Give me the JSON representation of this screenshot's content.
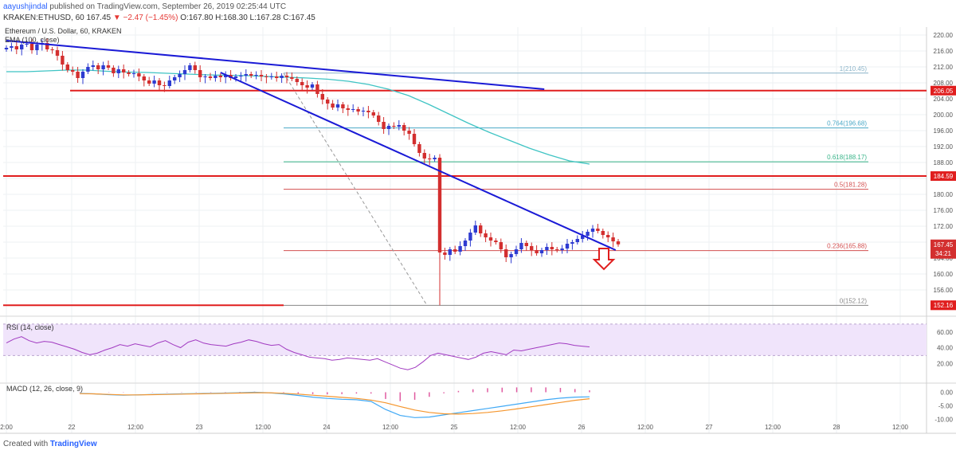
{
  "header": {
    "username": "aayushjindal",
    "published": "published on TradingView.com, September 26, 2019 02:25:44 UTC",
    "symbol": "KRAKEN:ETHUSD, 60",
    "last": "167.45",
    "change": "▼ −2.47 (−1.45%)",
    "ohlc": "O:167.80 H:168.30 L:167.28 C:167.45"
  },
  "colors": {
    "up": "#2e3bd1",
    "down": "#d32f2f",
    "ema": "#3fc4c4",
    "trend": "#1a1ad6",
    "level": "#e01e1e",
    "rsi": "#a13ac1",
    "rsi_band": "#f0e4fb",
    "macd": "#40a9f5",
    "signal": "#f5962e",
    "hist": "#e05aa0"
  },
  "chart_data": [
    {
      "type": "candlestick",
      "title": "Ethereum / U.S. Dollar, 60, KRAKEN",
      "indicator": "EMA (100, close)",
      "ylim": [
        152,
        222
      ],
      "y_ticks": [
        "220.00",
        "216.00",
        "212.00",
        "208.00",
        "204.00",
        "200.00",
        "196.00",
        "192.00",
        "188.00",
        "184.00",
        "180.00",
        "176.00",
        "172.00",
        "168.00",
        "164.00",
        "160.00",
        "156.00"
      ],
      "x_labels": [
        "2:00",
        "22",
        "12:00",
        "23",
        "12:00",
        "24",
        "12:00",
        "25",
        "12:00",
        "26",
        "12:00",
        "27",
        "12:00",
        "28",
        "12:00"
      ],
      "closes": [
        216.8,
        217.2,
        216.4,
        217.6,
        217.8,
        216.2,
        217.6,
        218.0,
        216.4,
        216.2,
        214.8,
        212.6,
        211.2,
        210.8,
        209.2,
        210.8,
        212.0,
        212.4,
        211.4,
        212.4,
        211.8,
        210.4,
        211.4,
        210.6,
        210.2,
        210.4,
        209.6,
        208.6,
        207.8,
        208.6,
        207.4,
        207.2,
        208.6,
        209.4,
        210.2,
        211.2,
        212.4,
        211.2,
        209.4,
        209.6,
        209.2,
        209.8,
        209.4,
        210.0,
        209.2,
        209.6,
        209.8,
        210.2,
        209.8,
        210.0,
        209.6,
        209.4,
        209.6,
        209.2,
        209.8,
        209.4,
        209.0,
        208.2,
        207.4,
        206.8,
        207.6,
        205.2,
        203.8,
        202.8,
        201.8,
        202.6,
        201.6,
        201.2,
        201.4,
        200.8,
        201.0,
        200.6,
        199.8,
        198.2,
        196.4,
        197.2,
        197.0,
        197.4,
        196.0,
        195.2,
        192.6,
        190.4,
        189.0,
        188.8,
        189.2,
        165.4,
        164.8,
        166.2,
        165.6,
        167.0,
        168.4,
        170.4,
        172.2,
        170.2,
        169.2,
        168.4,
        168.0,
        166.2,
        164.2,
        165.0,
        166.2,
        167.8,
        167.0,
        166.0,
        165.2,
        166.0,
        166.8,
        166.2,
        166.0,
        166.4,
        167.6,
        168.0,
        168.8,
        169.6,
        170.6,
        171.4,
        170.8,
        169.8,
        169.2,
        168.2,
        167.45
      ],
      "last_price": "167.45",
      "last_price_countdown": "34:21",
      "ema_values": [
        210.8,
        210.8,
        211.0,
        211.2,
        211.2,
        210.9,
        210.7,
        210.6,
        210.4,
        210.2,
        210.0,
        209.9,
        209.8,
        209.6,
        209.4,
        209.2,
        208.9,
        208.4,
        207.6,
        206.4,
        204.8,
        202.6,
        200.2,
        197.8,
        195.6,
        193.6,
        191.6,
        189.9,
        188.4,
        187.6
      ],
      "levels": [
        {
          "label": "206.05",
          "value": 206.05,
          "style": "resistance"
        },
        {
          "label": "184.59",
          "value": 184.59,
          "style": "resistance"
        },
        {
          "label": "152.16",
          "value": 152.16,
          "style": "support"
        }
      ],
      "fib_levels": [
        {
          "label": "1(210.45)",
          "value": 210.45
        },
        {
          "label": "0.764(196.68)",
          "value": 196.68
        },
        {
          "label": "0.618(188.17)",
          "value": 188.17
        },
        {
          "label": "0.5(181.28)",
          "value": 181.28
        },
        {
          "label": "0.236(165.88)",
          "value": 165.88
        },
        {
          "label": "0(152.12)",
          "value": 152.12
        }
      ],
      "trend_lines": [
        {
          "from": [
            0,
            218.6
          ],
          "to": [
            105.5,
            206.4
          ]
        },
        {
          "from": [
            42,
            210.6
          ],
          "to": [
            119.5,
            166.0
          ]
        }
      ]
    },
    {
      "type": "line",
      "title": "RSI (14, close)",
      "ylim": [
        0,
        75
      ],
      "y_ticks": [
        "60.00",
        "40.00",
        "20.00"
      ],
      "bands": [
        30,
        70
      ],
      "values": [
        46,
        51,
        54,
        49,
        46,
        48,
        47,
        44,
        41,
        38,
        34,
        31,
        33,
        37,
        40,
        44,
        42,
        45,
        43,
        41,
        46,
        49,
        44,
        40,
        47,
        50,
        46,
        44,
        43,
        42,
        45,
        47,
        50,
        48,
        45,
        43,
        44,
        38,
        34,
        31,
        28,
        27,
        26,
        24,
        25,
        27,
        26,
        25,
        24,
        26,
        22,
        18,
        14,
        12,
        15,
        22,
        30,
        33,
        31,
        29,
        27,
        25,
        28,
        33,
        35,
        33,
        31,
        37,
        36,
        38,
        40,
        42,
        44,
        46,
        45,
        43,
        42,
        41
      ]
    },
    {
      "type": "line",
      "title": "MACD (12, 26, close, 9)",
      "ylim": [
        -10.5,
        2.5
      ],
      "y_ticks": [
        "0.00",
        "-5.00",
        "-10.00"
      ],
      "series": [
        {
          "name": "MACD",
          "values": [
            -0.4,
            -0.6,
            -0.9,
            -1.1,
            -1.0,
            -0.8,
            -0.7,
            -0.6,
            -0.5,
            -0.4,
            -0.3,
            -0.2,
            0.0,
            -0.2,
            -0.6,
            -1.2,
            -1.8,
            -2.3,
            -2.6,
            -2.8,
            -3.4,
            -6.4,
            -8.6,
            -9.4,
            -9.2,
            -8.4,
            -7.6,
            -6.8,
            -6.0,
            -5.2,
            -4.4,
            -3.6,
            -2.8,
            -2.2,
            -1.8,
            -1.7
          ]
        },
        {
          "name": "Signal",
          "values": [
            -0.5,
            -0.6,
            -0.8,
            -1.0,
            -1.0,
            -0.9,
            -0.8,
            -0.7,
            -0.6,
            -0.5,
            -0.4,
            -0.3,
            -0.2,
            -0.2,
            -0.4,
            -0.7,
            -1.1,
            -1.5,
            -1.9,
            -2.3,
            -2.9,
            -3.9,
            -5.3,
            -6.6,
            -7.5,
            -8.0,
            -8.1,
            -7.9,
            -7.5,
            -6.9,
            -6.2,
            -5.4,
            -4.6,
            -3.8,
            -3.0,
            -2.4
          ]
        }
      ]
    }
  ],
  "footer": {
    "created_with": "Created with",
    "brand": "TradingView"
  }
}
